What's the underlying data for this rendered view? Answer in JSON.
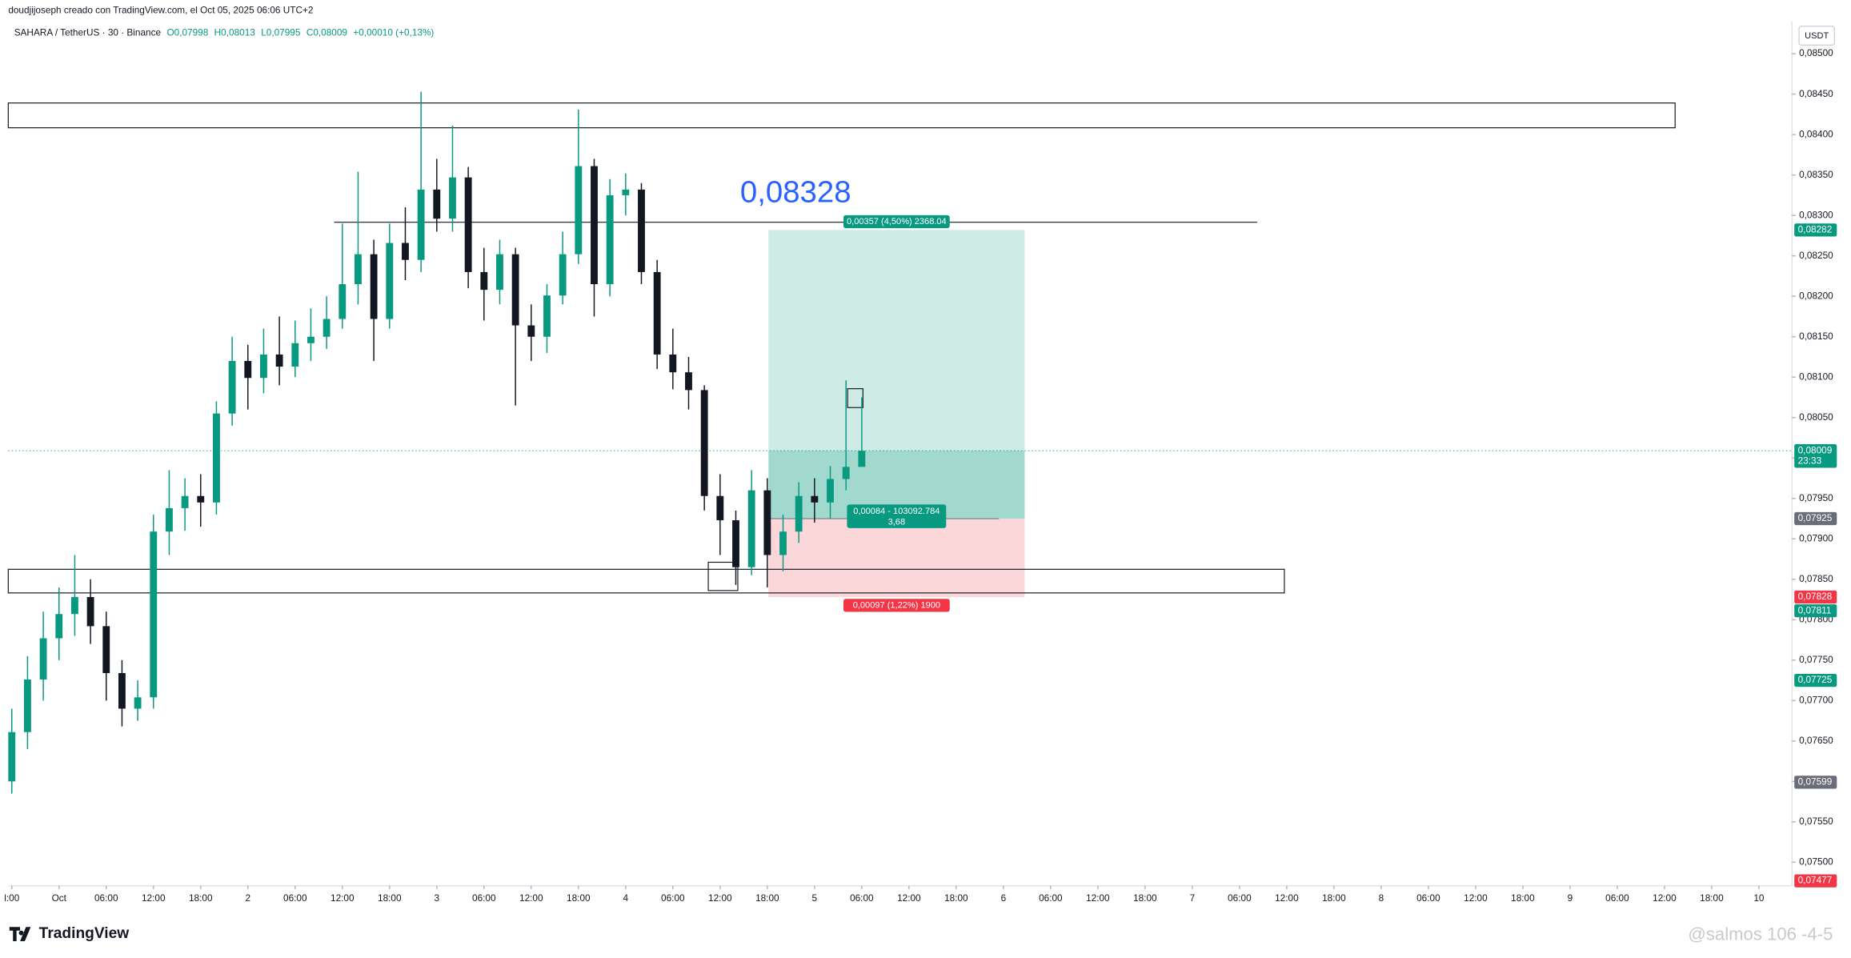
{
  "chart_data": {
    "type": "candlestick",
    "header": {
      "author_line": "doudjijoseph creado con TradingView.com, el Oct 05, 2025 06:06 UTC+2",
      "symbol": "SAHARA / TetherUS · 30 · Binance",
      "ohlc": [
        "O0,07998",
        "H0,08013",
        "L0,07995",
        "C0,08009",
        "+0,00010 (+0,13%)"
      ]
    },
    "currency": "USDT",
    "annotation": "0,08328",
    "brand": "TradingView",
    "watermark": "@salmos 106 -4-5",
    "up_color": "#089981",
    "down_color": "#131722",
    "xlim": [
      -6.45,
      220.2
    ],
    "xticks": [
      {
        "value": -6,
        "label": "l:00"
      },
      {
        "value": 0,
        "label": "Oct"
      },
      {
        "value": 6,
        "label": "06:00"
      },
      {
        "value": 12,
        "label": "12:00"
      },
      {
        "value": 18,
        "label": "18:00"
      },
      {
        "value": 24,
        "label": "2"
      },
      {
        "value": 30,
        "label": "06:00"
      },
      {
        "value": 36,
        "label": "12:00"
      },
      {
        "value": 42,
        "label": "18:00"
      },
      {
        "value": 48,
        "label": "3"
      },
      {
        "value": 54,
        "label": "06:00"
      },
      {
        "value": 60,
        "label": "12:00"
      },
      {
        "value": 66,
        "label": "18:00"
      },
      {
        "value": 72,
        "label": "4"
      },
      {
        "value": 78,
        "label": "06:00"
      },
      {
        "value": 84,
        "label": "12:00"
      },
      {
        "value": 90,
        "label": "18:00"
      },
      {
        "value": 96,
        "label": "5"
      },
      {
        "value": 102,
        "label": "06:00"
      },
      {
        "value": 108,
        "label": "12:00"
      },
      {
        "value": 114,
        "label": "18:00"
      },
      {
        "value": 120,
        "label": "6"
      },
      {
        "value": 126,
        "label": "06:00"
      },
      {
        "value": 132,
        "label": "12:00"
      },
      {
        "value": 138,
        "label": "18:00"
      },
      {
        "value": 144,
        "label": "7"
      },
      {
        "value": 150,
        "label": "06:00"
      },
      {
        "value": 156,
        "label": "12:00"
      },
      {
        "value": 162,
        "label": "18:00"
      },
      {
        "value": 168,
        "label": "8"
      },
      {
        "value": 174,
        "label": "06:00"
      },
      {
        "value": 180,
        "label": "12:00"
      },
      {
        "value": 186,
        "label": "18:00"
      },
      {
        "value": 192,
        "label": "9"
      },
      {
        "value": 198,
        "label": "06:00"
      },
      {
        "value": 204,
        "label": "12:00"
      },
      {
        "value": 210,
        "label": "18:00"
      },
      {
        "value": 216,
        "label": "10"
      }
    ],
    "ylim": [
      0.07471,
      0.08534
    ],
    "yticks": [
      {
        "value": 0.075,
        "label": "0,07500"
      },
      {
        "value": 0.0755,
        "label": "0,07550"
      },
      {
        "value": 0.076,
        "label": "0,07600"
      },
      {
        "value": 0.0765,
        "label": "0,07650"
      },
      {
        "value": 0.077,
        "label": "0,07700"
      },
      {
        "value": 0.0775,
        "label": "0,07750"
      },
      {
        "value": 0.078,
        "label": "0,07800"
      },
      {
        "value": 0.0785,
        "label": "0,07850"
      },
      {
        "value": 0.079,
        "label": "0,07900"
      },
      {
        "value": 0.0795,
        "label": "0,07950"
      },
      {
        "value": 0.08,
        "label": "0,08000"
      },
      {
        "value": 0.0805,
        "label": "0,08050"
      },
      {
        "value": 0.081,
        "label": "0,08100"
      },
      {
        "value": 0.0815,
        "label": "0,08150"
      },
      {
        "value": 0.082,
        "label": "0,08200"
      },
      {
        "value": 0.0825,
        "label": "0,08250"
      },
      {
        "value": 0.083,
        "label": "0,08300"
      },
      {
        "value": 0.0835,
        "label": "0,08350"
      },
      {
        "value": 0.084,
        "label": "0,08400"
      },
      {
        "value": 0.0845,
        "label": "0,08450"
      },
      {
        "value": 0.085,
        "label": "0,08500"
      }
    ],
    "x": [
      -6,
      -4,
      -2,
      0,
      2,
      4,
      6,
      8,
      10,
      12,
      14,
      16,
      18,
      20,
      22,
      24,
      26,
      28,
      30,
      32,
      34,
      36,
      38,
      40,
      42,
      44,
      46,
      48,
      50,
      52,
      54,
      56,
      58,
      60,
      62,
      64,
      66,
      68,
      70,
      72,
      74,
      76,
      78,
      80,
      82,
      84,
      86,
      88,
      90,
      92,
      94,
      96,
      98,
      100,
      102
    ],
    "open": [
      0.076,
      0.07661,
      0.07726,
      0.07777,
      0.07807,
      0.07828,
      0.07792,
      0.07734,
      0.0769,
      0.07704,
      0.07909,
      0.07938,
      0.07953,
      0.07945,
      0.08055,
      0.0812,
      0.08099,
      0.08128,
      0.08113,
      0.08142,
      0.0815,
      0.08172,
      0.08215,
      0.08252,
      0.08172,
      0.08266,
      0.08245,
      0.08332,
      0.08296,
      0.08347,
      0.0823,
      0.08208,
      0.08252,
      0.08164,
      0.0815,
      0.08201,
      0.08252,
      0.08361,
      0.08215,
      0.08325,
      0.08332,
      0.0823,
      0.08128,
      0.08106,
      0.08084,
      0.07953,
      0.07923,
      0.07865,
      0.0796,
      0.0788,
      0.07909,
      0.07953,
      0.07945,
      0.07974,
      0.07989
    ],
    "high": [
      0.0769,
      0.07755,
      0.0781,
      0.0784,
      0.0788,
      0.0785,
      0.0781,
      0.0775,
      0.07725,
      0.0793,
      0.07985,
      0.07975,
      0.0798,
      0.0807,
      0.0815,
      0.0814,
      0.0816,
      0.08175,
      0.0817,
      0.08185,
      0.082,
      0.0829,
      0.08354,
      0.0827,
      0.0829,
      0.0831,
      0.08453,
      0.0837,
      0.08411,
      0.0836,
      0.0826,
      0.0827,
      0.0826,
      0.0819,
      0.08215,
      0.0828,
      0.08431,
      0.0837,
      0.08345,
      0.08352,
      0.0834,
      0.08245,
      0.0816,
      0.08125,
      0.0809,
      0.0798,
      0.07935,
      0.07985,
      0.07975,
      0.0793,
      0.0797,
      0.07975,
      0.0799,
      0.08096,
      0.08075
    ],
    "low": [
      0.07585,
      0.0764,
      0.077,
      0.0775,
      0.0778,
      0.0777,
      0.077,
      0.07668,
      0.07675,
      0.0769,
      0.0788,
      0.0791,
      0.07915,
      0.0793,
      0.0804,
      0.0806,
      0.0808,
      0.0809,
      0.081,
      0.0812,
      0.08135,
      0.0816,
      0.0819,
      0.0812,
      0.0816,
      0.0822,
      0.0823,
      0.0828,
      0.0828,
      0.0821,
      0.0817,
      0.0819,
      0.08065,
      0.0812,
      0.0813,
      0.0819,
      0.0824,
      0.08175,
      0.082,
      0.083,
      0.08215,
      0.0811,
      0.08085,
      0.0806,
      0.07935,
      0.0788,
      0.07843,
      0.07855,
      0.0784,
      0.0786,
      0.07895,
      0.0792,
      0.07925,
      0.0796,
      0.07995
    ],
    "close": [
      0.07661,
      0.07726,
      0.07777,
      0.07807,
      0.07828,
      0.07792,
      0.07734,
      0.0769,
      0.07704,
      0.07909,
      0.07938,
      0.07953,
      0.07945,
      0.08055,
      0.0812,
      0.08099,
      0.08128,
      0.08113,
      0.08142,
      0.0815,
      0.08172,
      0.08215,
      0.08252,
      0.08172,
      0.08266,
      0.08245,
      0.08332,
      0.08296,
      0.08347,
      0.0823,
      0.08208,
      0.08252,
      0.08164,
      0.0815,
      0.08201,
      0.08252,
      0.08361,
      0.08215,
      0.08325,
      0.08332,
      0.0823,
      0.08128,
      0.08106,
      0.08084,
      0.07953,
      0.07923,
      0.07865,
      0.0796,
      0.0788,
      0.07909,
      0.07953,
      0.07945,
      0.07974,
      0.07989,
      0.08009
    ],
    "price_tags": [
      {
        "value": 0.08282,
        "label": "0,08282",
        "color": "#089981"
      },
      {
        "value": 0.08009,
        "label": "0,08009",
        "sublabel": "23:33",
        "color": "#089981"
      },
      {
        "value": 0.07925,
        "label": "0,07925",
        "color": "#6a6d78"
      },
      {
        "value": 0.07828,
        "label": "0,07828",
        "color": "#f23645"
      },
      {
        "value": 0.07811,
        "label": "0,07811",
        "color": "#089981"
      },
      {
        "value": 0.07725,
        "label": "0,07725",
        "color": "#089981"
      },
      {
        "value": 0.07599,
        "label": "0,07599",
        "color": "#6a6d78"
      },
      {
        "value": 0.07477,
        "label": "0,07477",
        "color": "#f23645"
      }
    ],
    "long_position": {
      "x": [
        90.15,
        122.7
      ],
      "target": 0.08282,
      "entry": 0.07925,
      "stop": 0.07828,
      "current": 0.08009,
      "target_label": "0,00357 (4,50%) 2368.04",
      "entry_label": "0,00084 - 103092.784",
      "ratio_label": "3,68",
      "stop_label": "0,00097 (1,22%) 1900"
    }
  }
}
